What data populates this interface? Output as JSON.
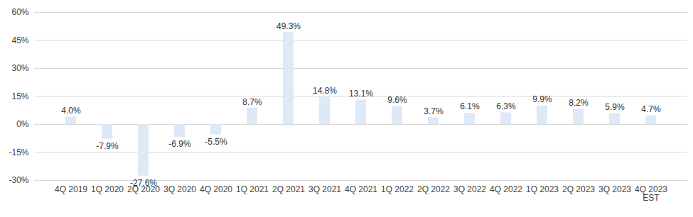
{
  "chart_data": {
    "type": "bar",
    "categories": [
      "4Q 2019",
      "1Q 2020",
      "2Q 2020",
      "3Q 2020",
      "4Q 2020",
      "1Q 2021",
      "2Q 2021",
      "3Q 2021",
      "4Q 2021",
      "1Q 2022",
      "2Q 2022",
      "3Q 2022",
      "4Q 2022",
      "1Q 2023",
      "2Q 2023",
      "3Q 2023",
      "4Q 2023\nEST"
    ],
    "values": [
      4.0,
      -7.9,
      -27.6,
      -6.9,
      -5.5,
      8.7,
      49.3,
      14.8,
      13.1,
      9.6,
      3.7,
      6.1,
      6.3,
      9.9,
      8.2,
      5.9,
      4.7
    ],
    "value_labels": [
      "4.0%",
      "-7.9%",
      "-27.6%",
      "-6.9%",
      "-5.5%",
      "8.7%",
      "49.3%",
      "14.8%",
      "13.1%",
      "9.6%",
      "3.7%",
      "6.1%",
      "6.3%",
      "9.9%",
      "8.2%",
      "5.9%",
      "4.7%"
    ],
    "color": "#dde9f7",
    "ylim": [
      -30,
      60
    ],
    "yticks": [
      {
        "value": -30,
        "label": "-30%"
      },
      {
        "value": -15,
        "label": "-15%"
      },
      {
        "value": 0,
        "label": "0%"
      },
      {
        "value": 15,
        "label": "15%"
      },
      {
        "value": 30,
        "label": "30%"
      },
      {
        "value": 45,
        "label": "45%"
      },
      {
        "value": 60,
        "label": "60%"
      }
    ],
    "grid": true,
    "data_labels": true
  }
}
